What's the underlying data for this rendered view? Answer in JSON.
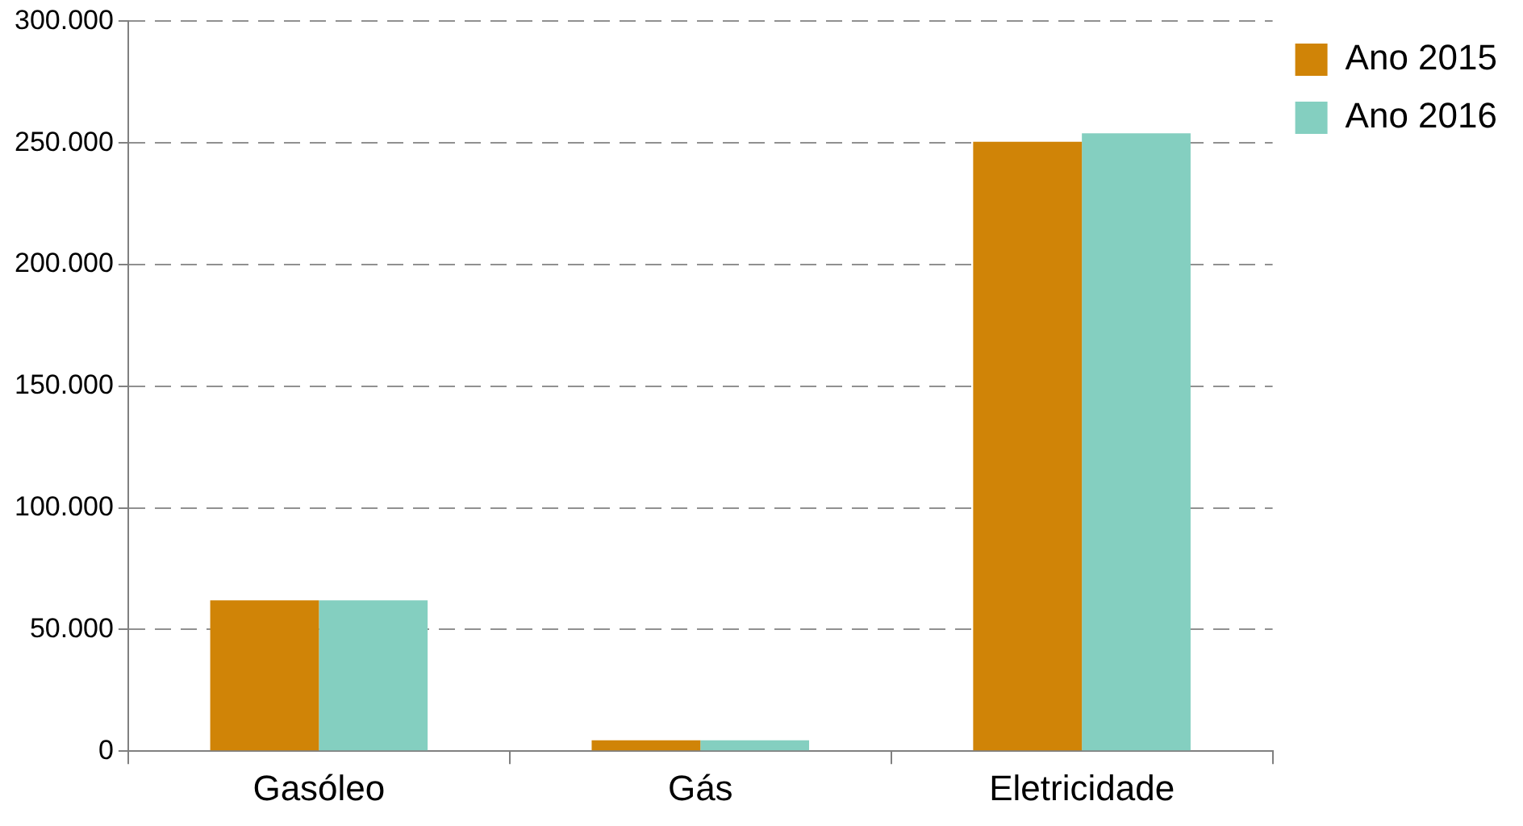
{
  "chart_data": {
    "type": "bar",
    "categories": [
      "Gasóleo",
      "Gás",
      "Eletricidade"
    ],
    "series": [
      {
        "name": "Ano 2015",
        "color": "#d08407",
        "values": [
          62000,
          4500,
          250500
        ]
      },
      {
        "name": "Ano 2016",
        "color": "#84cfc0",
        "values": [
          62000,
          4500,
          254000
        ]
      }
    ],
    "ylim": [
      0,
      300000
    ],
    "yticks": [
      {
        "value": 0,
        "label": "0"
      },
      {
        "value": 50000,
        "label": "50.000"
      },
      {
        "value": 100000,
        "label": "100.000"
      },
      {
        "value": 150000,
        "label": "150.000"
      },
      {
        "value": 200000,
        "label": "200.000"
      },
      {
        "value": 250000,
        "label": "250.000"
      },
      {
        "value": 300000,
        "label": "300.000"
      }
    ],
    "grid": "y",
    "legend": "top right"
  }
}
